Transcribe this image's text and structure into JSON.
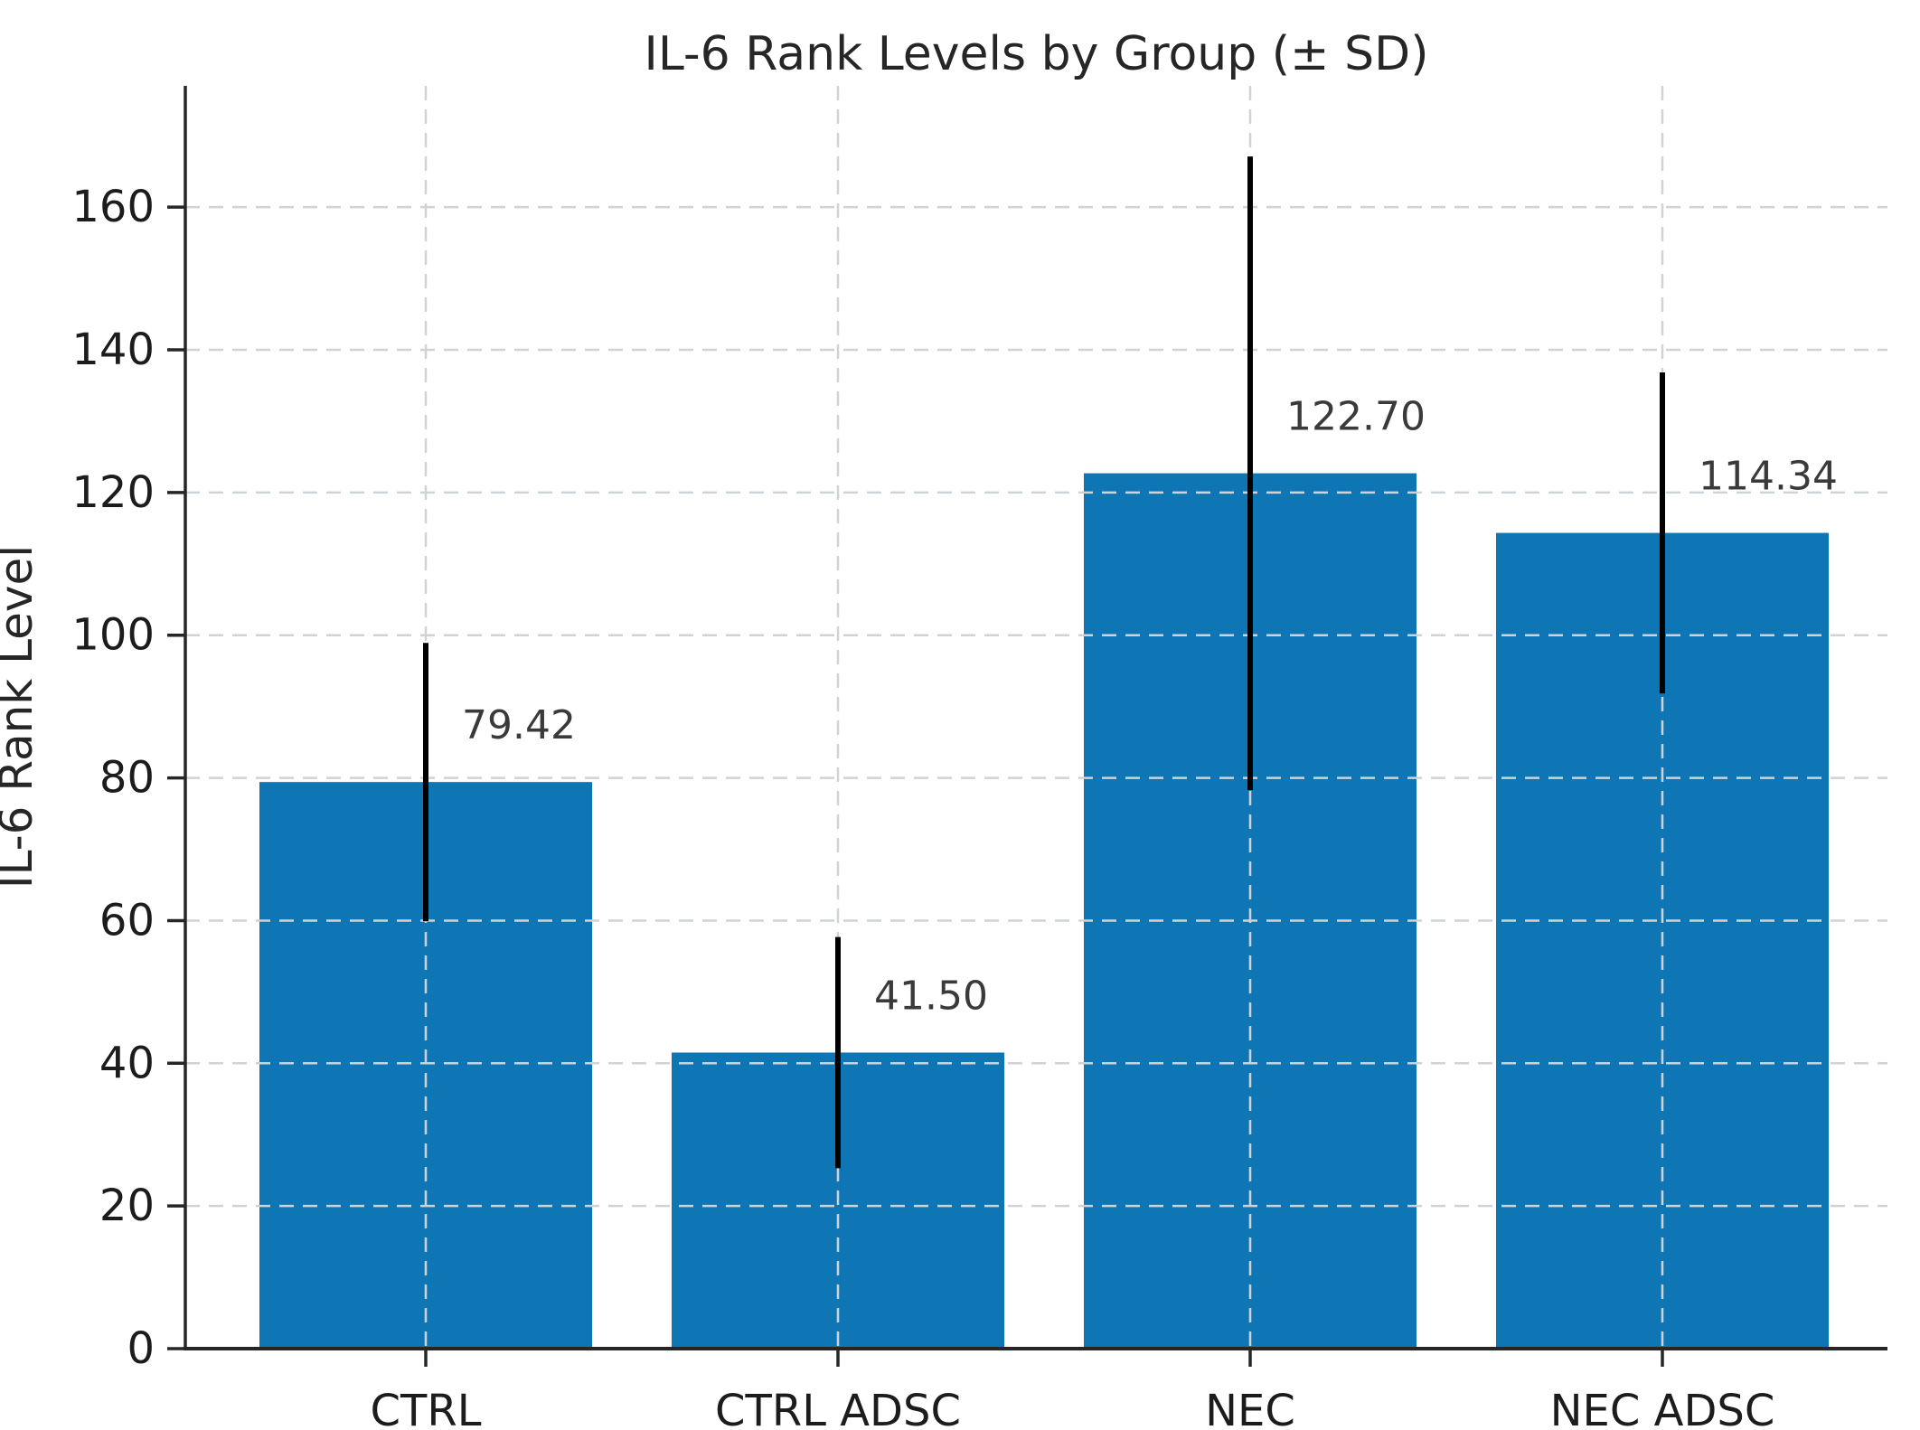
{
  "figure": {
    "title": "IL-6 Rank Levels by Group (± SD)",
    "y_axis_label": "IL-6 Rank Level"
  },
  "chart_data": {
    "type": "bar",
    "title": "IL-6 Rank Levels by Group (± SD)",
    "xlabel": "",
    "ylabel": "IL-6 Rank Level",
    "categories": [
      "CTRL",
      "CTRL ADSC",
      "NEC",
      "NEC ADSC"
    ],
    "values": [
      79.42,
      41.5,
      122.7,
      114.34
    ],
    "value_labels": [
      "79.42",
      "41.50",
      "122.70",
      "114.34"
    ],
    "error_sd": [
      19.5,
      16.2,
      44.4,
      22.5
    ],
    "error_low": [
      59.9,
      25.3,
      78.3,
      91.8
    ],
    "error_high": [
      98.9,
      57.7,
      167.1,
      136.9
    ],
    "yticks": [
      "0",
      "20",
      "40",
      "60",
      "80",
      "100",
      "120",
      "140",
      "160"
    ],
    "ytick_values": [
      0,
      20,
      40,
      60,
      80,
      100,
      120,
      140,
      160
    ],
    "ylim": [
      0,
      177
    ],
    "grid": "dashed gray, horizontal at yticks and vertical at bar centers, drawn above bars",
    "legend_position": "none",
    "bar_color": "#0f76b6",
    "error_bar_color": "#000000",
    "value_label_color": "#3a3a3a",
    "axis_color": "#262626",
    "tick_label_color": "#1c1c1c",
    "grid_color": "#cfd3d6",
    "background_color": "#ffffff"
  }
}
